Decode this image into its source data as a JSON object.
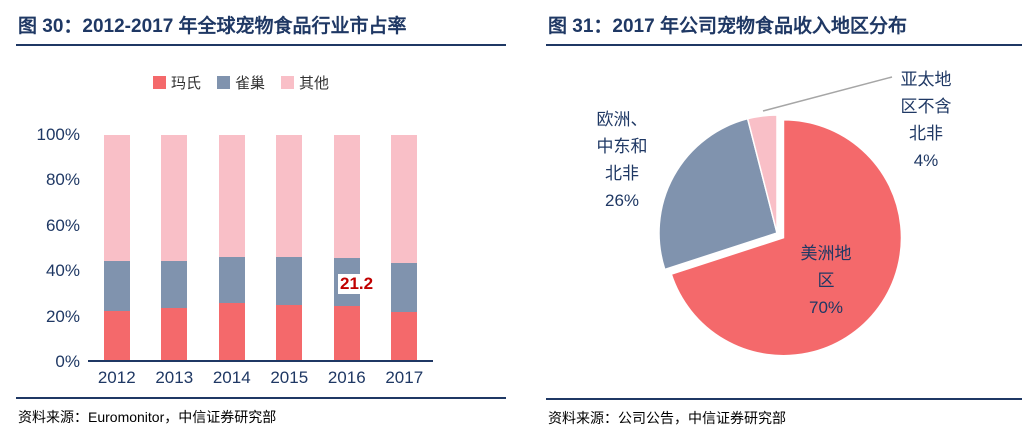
{
  "left_panel": {
    "title": "图 30：2012-2017 年全球宠物食品行业市占率",
    "source": {
      "prefix": "资料来源：",
      "text": "Euromonitor，中信证券研究部"
    },
    "chart_data": {
      "type": "bar",
      "stacked": true,
      "title": "2012-2017 年全球宠物食品行业市占率",
      "categories": [
        "2012",
        "2013",
        "2014",
        "2015",
        "2016",
        "2017"
      ],
      "series": [
        {
          "key": "mars",
          "name": "玛氏",
          "color": "#F4696B",
          "values": [
            22,
            23,
            25.5,
            24.5,
            24,
            21.2
          ]
        },
        {
          "key": "nestle",
          "name": "雀巢",
          "color": "#8093AE",
          "values": [
            22,
            21,
            20.5,
            21.5,
            21.5,
            22
          ]
        },
        {
          "key": "others",
          "name": "其他",
          "color": "#F9BFC7",
          "values": [
            56,
            56,
            54,
            54,
            54.5,
            56.8
          ]
        }
      ],
      "ylim": [
        0,
        100
      ],
      "yticks": [
        "0%",
        "20%",
        "40%",
        "60%",
        "80%",
        "100%"
      ],
      "grid": false,
      "legend_position": "top",
      "annotation": {
        "text": "21.2",
        "color": "#C00000",
        "year": "2017"
      }
    }
  },
  "right_panel": {
    "title": "图 31：2017 年公司宠物食品收入地区分布",
    "source": {
      "prefix": "资料来源：",
      "text": "公司公告，中信证券研究部"
    },
    "chart_data": {
      "type": "pie",
      "title": "2017 年公司宠物食品收入地区分布",
      "start_angle_deg": 0,
      "direction": "clockwise",
      "legend_position": "none",
      "slices": [
        {
          "key": "americas",
          "label": "美洲地区",
          "pct": 70,
          "pct_label": "70%",
          "color": "#F4696B",
          "explode": 8
        },
        {
          "key": "emena",
          "label": "欧洲、中东和北非",
          "pct": 26,
          "pct_label": "26%",
          "color": "#8093AE",
          "explode": 0
        },
        {
          "key": "apac",
          "label": "亚太地区不含北非",
          "pct": 4,
          "pct_label": "4%",
          "color": "#F9BFC7",
          "explode": 0
        }
      ]
    }
  },
  "colors": {
    "title_navy": "#1F3864",
    "annotation_red": "#C00000",
    "leader_line_gray": "#A6A6A6"
  }
}
